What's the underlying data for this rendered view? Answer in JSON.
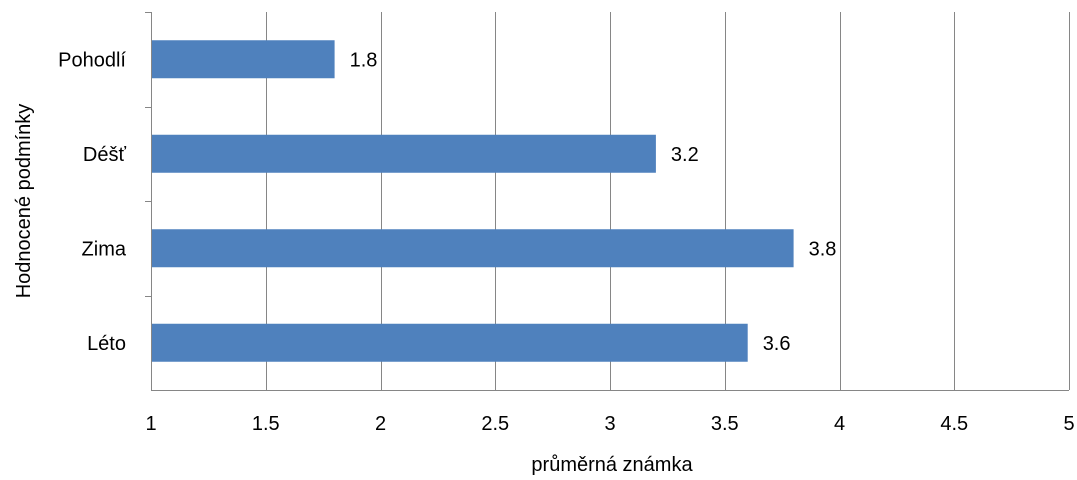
{
  "chart_data": {
    "type": "bar",
    "orientation": "horizontal",
    "categories": [
      "Pohodlí",
      "Déšť",
      "Zima",
      "Léto"
    ],
    "values": [
      1.8,
      3.2,
      3.8,
      3.6
    ],
    "data_labels": [
      "1.8",
      "3.2",
      "3.8",
      "3.6"
    ],
    "xlabel": "průměrná známka",
    "ylabel": "Hodnocené podmínky",
    "xlim": [
      1,
      5
    ],
    "x_ticks": [
      1,
      1.5,
      2,
      2.5,
      3,
      3.5,
      4,
      4.5,
      5
    ],
    "x_tick_labels": [
      "1",
      "1.5",
      "2",
      "2.5",
      "3",
      "3.5",
      "4",
      "4.5",
      "5"
    ],
    "grid": "vertical",
    "legend": "none",
    "bar_color": "#4f81bd",
    "grid_color": "#868686"
  }
}
